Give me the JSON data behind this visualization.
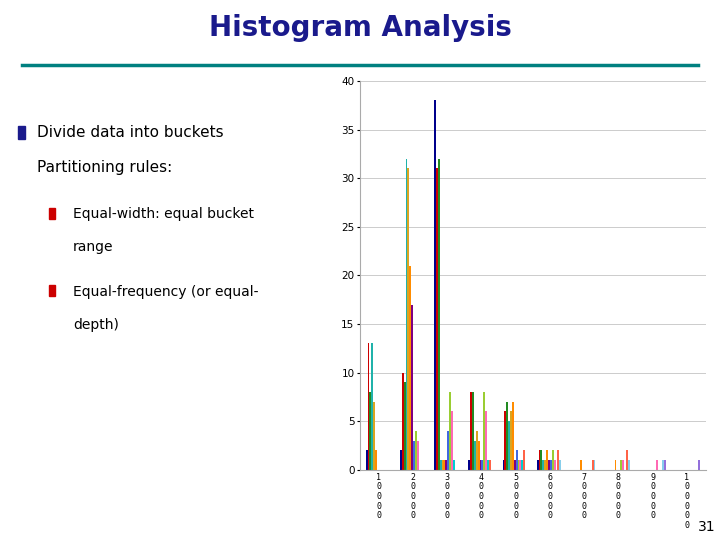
{
  "title": "Histogram Analysis",
  "title_color": "#1a1a8c",
  "title_fontsize": 20,
  "title_fontweight": "bold",
  "slide_bg": "#ffffff",
  "divider_color": "#008080",
  "bullet_color": "#1a1a8c",
  "sub_bullet_color": "#cc0000",
  "page_number": "31",
  "x_labels": [
    "10000",
    "20000",
    "30000",
    "40000",
    "50000",
    "60000",
    "70000",
    "80000",
    "90000",
    "100000"
  ],
  "y_max": 40,
  "y_ticks": [
    0,
    5,
    10,
    15,
    20,
    25,
    30,
    35,
    40
  ],
  "series_data": [
    [
      2,
      2,
      38,
      1,
      1,
      1,
      0,
      0,
      0,
      0
    ],
    [
      13,
      10,
      31,
      8,
      6,
      2,
      0,
      0,
      0,
      0
    ],
    [
      8,
      9,
      32,
      8,
      7,
      2,
      0,
      0,
      0,
      0
    ],
    [
      13,
      32,
      1,
      3,
      5,
      1,
      0,
      0,
      0,
      0
    ],
    [
      7,
      31,
      1,
      4,
      6,
      1,
      0,
      0,
      0,
      0
    ],
    [
      2,
      21,
      1,
      3,
      7,
      2,
      1,
      1,
      0,
      0
    ],
    [
      0,
      17,
      1,
      1,
      1,
      1,
      0,
      0,
      0,
      0
    ],
    [
      0,
      3,
      4,
      1,
      2,
      1,
      0,
      0,
      0,
      0
    ],
    [
      0,
      4,
      8,
      8,
      1,
      2,
      0,
      1,
      0,
      0
    ],
    [
      0,
      3,
      6,
      6,
      1,
      1,
      0,
      1,
      1,
      0
    ],
    [
      0,
      0,
      1,
      1,
      1,
      0,
      0,
      0,
      0,
      0
    ],
    [
      0,
      0,
      0,
      1,
      2,
      2,
      1,
      2,
      0,
      0
    ],
    [
      0,
      0,
      0,
      0,
      0,
      1,
      1,
      1,
      1,
      0
    ],
    [
      0,
      0,
      0,
      0,
      0,
      0,
      0,
      0,
      1,
      1
    ]
  ],
  "bar_colors": [
    "#00008b",
    "#cc0000",
    "#228b22",
    "#20b2aa",
    "#daa520",
    "#ff8c00",
    "#800080",
    "#4169e1",
    "#9acd32",
    "#ff69b4",
    "#00ced1",
    "#ff6347",
    "#87ceeb",
    "#9370db"
  ]
}
